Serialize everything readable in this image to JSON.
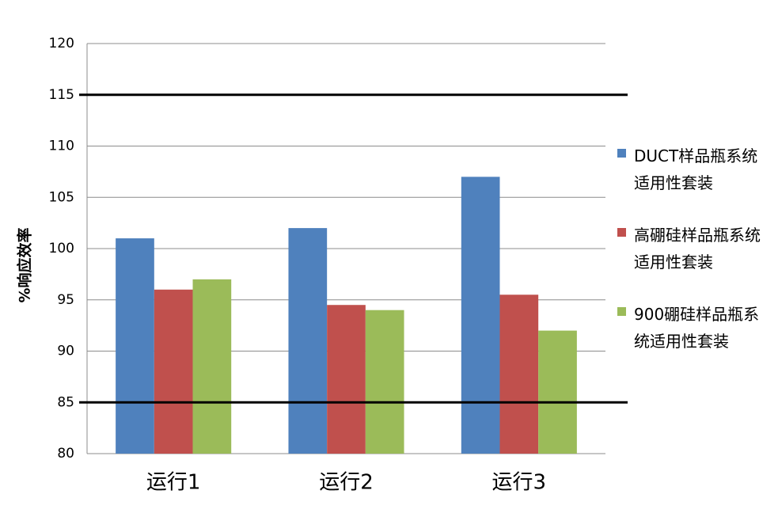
{
  "chart_data": {
    "type": "bar",
    "y_label": "%响应效率",
    "categories": [
      "运行1",
      "运行2",
      "运行3"
    ],
    "series": [
      {
        "name": "DUCT样品瓶系统适用性套装",
        "color": "#4f81bd",
        "values": [
          101,
          102,
          107
        ]
      },
      {
        "name": "高硼硅样品瓶系统适用性套装",
        "color": "#c0504d",
        "values": [
          96,
          94.5,
          95.5
        ]
      },
      {
        "name": "900硼硅样品瓶系统适用性套装",
        "color": "#9bbb59",
        "values": [
          97,
          94,
          92
        ]
      }
    ],
    "ylim": [
      80,
      120
    ],
    "yticks": [
      80,
      85,
      90,
      95,
      100,
      105,
      110,
      115,
      120
    ],
    "grid": true,
    "reference_lines": [
      85,
      115
    ]
  }
}
